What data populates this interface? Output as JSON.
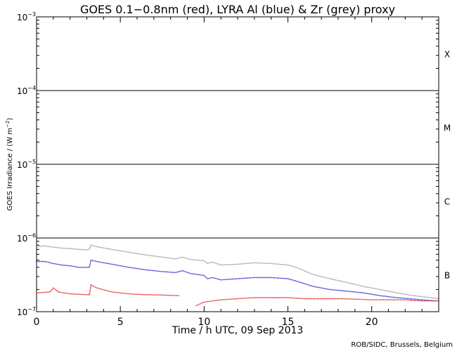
{
  "chart_data": {
    "type": "line",
    "title": "GOES 0.1−0.8nm (red), LYRA Al (blue) & Zr (grey) proxy",
    "xlabel": "Time / h UTC, 09 Sep 2013",
    "ylabel_main": "GOES Irradiance / (W m",
    "ylabel_sup": "−2",
    "ylabel_close": ")",
    "credit": "ROB/SIDC, Brussels, Belgium",
    "xlim": [
      0,
      24
    ],
    "ylim_log10": [
      -7,
      -3
    ],
    "x_ticks": [
      {
        "value": 0,
        "label": "0"
      },
      {
        "value": 5,
        "label": "5"
      },
      {
        "value": 10,
        "label": "10"
      },
      {
        "value": 15,
        "label": "15"
      },
      {
        "value": 20,
        "label": "20"
      }
    ],
    "y_ticks": [
      {
        "exp": -7,
        "base": "10",
        "sup": "−7"
      },
      {
        "exp": -6,
        "base": "10",
        "sup": "−6"
      },
      {
        "exp": -5,
        "base": "10",
        "sup": "−5"
      },
      {
        "exp": -4,
        "base": "10",
        "sup": "−4"
      },
      {
        "exp": -3,
        "base": "10",
        "sup": "−3"
      }
    ],
    "flare_class_lines": [
      -6,
      -5,
      -4
    ],
    "flare_classes": [
      {
        "label": "B",
        "center_log10": -6.5
      },
      {
        "label": "C",
        "center_log10": -5.5
      },
      {
        "label": "M",
        "center_log10": -4.5
      },
      {
        "label": "X",
        "center_log10": -3.5
      }
    ],
    "series": [
      {
        "name": "LYRA Zr proxy",
        "color": "#8a8a8a",
        "points": [
          [
            0,
            7.6e-07
          ],
          [
            0.5,
            7.8e-07
          ],
          [
            1.0,
            7.5e-07
          ],
          [
            1.5,
            7.3e-07
          ],
          [
            2.0,
            7.2e-07
          ],
          [
            2.5,
            7e-07
          ],
          [
            3.0,
            6.9e-07
          ],
          [
            3.15,
            7e-07
          ],
          [
            3.25,
            8e-07
          ],
          [
            3.6,
            7.6e-07
          ],
          [
            4.5,
            7e-07
          ],
          [
            5.5,
            6.4e-07
          ],
          [
            6.5,
            5.9e-07
          ],
          [
            7.5,
            5.5e-07
          ],
          [
            8.3,
            5.2e-07
          ],
          [
            8.7,
            5.5e-07
          ],
          [
            9.2,
            5.1e-07
          ],
          [
            10.0,
            4.9e-07
          ],
          [
            10.2,
            4.5e-07
          ],
          [
            10.5,
            4.7e-07
          ],
          [
            11.0,
            4.3e-07
          ],
          [
            12.0,
            4.4e-07
          ],
          [
            13.0,
            4.6e-07
          ],
          [
            14.0,
            4.5e-07
          ],
          [
            15.0,
            4.3e-07
          ],
          [
            15.5,
            4e-07
          ],
          [
            16.5,
            3.2e-07
          ],
          [
            17.5,
            2.8e-07
          ],
          [
            18.5,
            2.5e-07
          ],
          [
            19.5,
            2.2e-07
          ],
          [
            20.5,
            2e-07
          ],
          [
            21.5,
            1.8e-07
          ],
          [
            22.5,
            1.65e-07
          ],
          [
            23.5,
            1.55e-07
          ],
          [
            24,
            1.5e-07
          ]
        ]
      },
      {
        "name": "LYRA Al proxy",
        "color": "#0000cc",
        "points": [
          [
            0,
            4.8e-07
          ],
          [
            0.5,
            4.8e-07
          ],
          [
            1.0,
            4.5e-07
          ],
          [
            1.5,
            4.3e-07
          ],
          [
            2.0,
            4.2e-07
          ],
          [
            2.5,
            4e-07
          ],
          [
            3.0,
            4e-07
          ],
          [
            3.15,
            4e-07
          ],
          [
            3.25,
            5e-07
          ],
          [
            3.6,
            4.8e-07
          ],
          [
            4.5,
            4.4e-07
          ],
          [
            5.5,
            4e-07
          ],
          [
            6.5,
            3.7e-07
          ],
          [
            7.5,
            3.5e-07
          ],
          [
            8.3,
            3.4e-07
          ],
          [
            8.7,
            3.6e-07
          ],
          [
            9.2,
            3.3e-07
          ],
          [
            10.0,
            3.1e-07
          ],
          [
            10.2,
            2.8e-07
          ],
          [
            10.5,
            2.9e-07
          ],
          [
            11.0,
            2.7e-07
          ],
          [
            12.0,
            2.8e-07
          ],
          [
            13.0,
            2.9e-07
          ],
          [
            14.0,
            2.9e-07
          ],
          [
            15.0,
            2.8e-07
          ],
          [
            15.5,
            2.6e-07
          ],
          [
            16.5,
            2.2e-07
          ],
          [
            17.5,
            2e-07
          ],
          [
            18.5,
            1.9e-07
          ],
          [
            19.5,
            1.8e-07
          ],
          [
            20.5,
            1.65e-07
          ],
          [
            21.5,
            1.55e-07
          ],
          [
            22.5,
            1.48e-07
          ],
          [
            23.5,
            1.42e-07
          ],
          [
            24,
            1.4e-07
          ]
        ]
      },
      {
        "name": "GOES 0.1−0.8nm",
        "color": "#dd0000",
        "points": [
          [
            0,
            1.8e-07
          ],
          [
            0.8,
            1.85e-07
          ],
          [
            1.0,
            2.1e-07
          ],
          [
            1.3,
            1.85e-07
          ],
          [
            2.0,
            1.75e-07
          ],
          [
            3.0,
            1.7e-07
          ],
          [
            3.15,
            1.7e-07
          ],
          [
            3.25,
            2.3e-07
          ],
          [
            3.6,
            2.1e-07
          ],
          [
            4.5,
            1.85e-07
          ],
          [
            5.5,
            1.75e-07
          ],
          [
            6.5,
            1.7e-07
          ],
          [
            7.5,
            1.68e-07
          ],
          [
            8.5,
            1.65e-07
          ],
          [
            null,
            null
          ],
          [
            9.5,
            1.2e-07
          ],
          [
            10.0,
            1.35e-07
          ],
          [
            11.0,
            1.45e-07
          ],
          [
            12.0,
            1.5e-07
          ],
          [
            13.0,
            1.55e-07
          ],
          [
            14.0,
            1.55e-07
          ],
          [
            15.0,
            1.55e-07
          ],
          [
            16.0,
            1.5e-07
          ],
          [
            17.0,
            1.5e-07
          ],
          [
            18.0,
            1.5e-07
          ],
          [
            19.0,
            1.48e-07
          ],
          [
            20.0,
            1.45e-07
          ],
          [
            21.0,
            1.45e-07
          ],
          [
            22.0,
            1.45e-07
          ],
          [
            23.0,
            1.4e-07
          ],
          [
            24,
            1.4e-07
          ]
        ]
      }
    ]
  }
}
